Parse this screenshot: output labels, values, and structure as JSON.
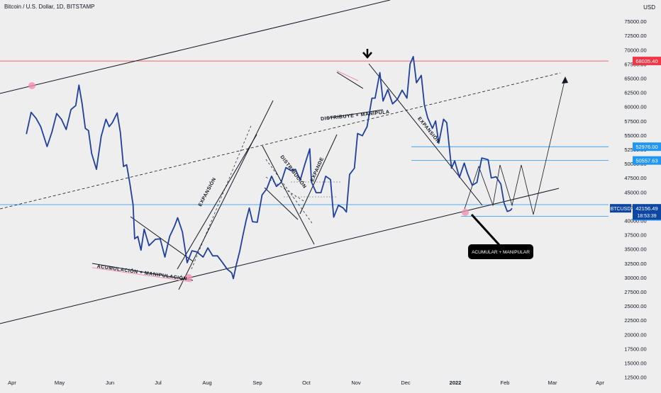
{
  "header": {
    "symbol_title": "Bitcoin / U.S. Dollar, 1D, BITSTAMP",
    "currency": "USD"
  },
  "price_tags": {
    "resistance_top": "68035.40",
    "level_upper": "52976.00",
    "level_mid": "50557.63",
    "ticker": "BTCUSD",
    "last_price": "42156.49",
    "countdown": "18:53:39",
    "level_support": "40746.76"
  },
  "annotations": {
    "accumulation": "ACUMULACIÓN + MANIPULACIÓN",
    "expansion_1": "EXPANSIÓN",
    "distribution_1": "DISTRIBUCIÓN",
    "expand": "EXPANDE",
    "distribution_2": "DISTRIBUYE + MANIPULA",
    "expansion_2": "EXPANSIÓN",
    "callout": "ACUMULAR + MANIPULAR"
  },
  "colors": {
    "background": "#eeeeee",
    "price_line": "#1e3f9e",
    "red_level": "#f23645",
    "blue_level": "#2196f3",
    "callout_bg": "#000000"
  },
  "chart_data": {
    "type": "line",
    "title": "Bitcoin / U.S. Dollar, 1D, BITSTAMP",
    "xlabel": "",
    "ylabel": "USD",
    "ylim": [
      12500,
      77500
    ],
    "x_ticks": [
      "Apr",
      "May",
      "Jun",
      "Jul",
      "Aug",
      "Sep",
      "Oct",
      "Nov",
      "Dec",
      "2022",
      "Feb",
      "Mar",
      "Apr"
    ],
    "y_ticks": [
      12500,
      15000,
      17500,
      20000,
      22500,
      25000,
      27500,
      30000,
      32500,
      35000,
      37500,
      40000,
      42500,
      45000,
      47500,
      50000,
      52500,
      55000,
      57500,
      60000,
      62500,
      65000,
      67500,
      70000,
      72500,
      75000,
      77500
    ],
    "grid": false,
    "series": [
      {
        "points": [
          [
            "2021-03-12",
            55200
          ],
          [
            "2021-03-15",
            59000
          ],
          [
            "2021-03-18",
            58000
          ],
          [
            "2021-03-21",
            56500
          ],
          [
            "2021-03-25",
            53000
          ],
          [
            "2021-03-28",
            55500
          ],
          [
            "2021-03-31",
            58800
          ],
          [
            "2021-04-03",
            57800
          ],
          [
            "2021-04-06",
            56000
          ],
          [
            "2021-04-09",
            59500
          ],
          [
            "2021-04-12",
            60200
          ],
          [
            "2021-04-14",
            63800
          ],
          [
            "2021-04-16",
            60500
          ],
          [
            "2021-04-18",
            56200
          ],
          [
            "2021-04-20",
            55800
          ],
          [
            "2021-04-22",
            51800
          ],
          [
            "2021-04-25",
            49000
          ],
          [
            "2021-04-28",
            54800
          ],
          [
            "2021-05-01",
            57800
          ],
          [
            "2021-05-03",
            56500
          ],
          [
            "2021-05-05",
            57200
          ],
          [
            "2021-05-08",
            58900
          ],
          [
            "2021-05-10",
            55500
          ],
          [
            "2021-05-12",
            49500
          ],
          [
            "2021-05-14",
            49800
          ],
          [
            "2021-05-16",
            46500
          ],
          [
            "2021-05-18",
            42800
          ],
          [
            "2021-05-19",
            36800
          ],
          [
            "2021-05-21",
            37200
          ],
          [
            "2021-05-23",
            34800
          ],
          [
            "2021-05-25",
            38500
          ],
          [
            "2021-05-28",
            35600
          ],
          [
            "2021-06-01",
            36700
          ],
          [
            "2021-06-04",
            36800
          ],
          [
            "2021-06-07",
            33600
          ],
          [
            "2021-06-10",
            37200
          ],
          [
            "2021-06-13",
            39000
          ],
          [
            "2021-06-15",
            40500
          ],
          [
            "2021-06-18",
            38000
          ],
          [
            "2021-06-21",
            32600
          ],
          [
            "2021-06-24",
            34700
          ],
          [
            "2021-06-27",
            34500
          ],
          [
            "2021-07-01",
            33600
          ],
          [
            "2021-07-04",
            35200
          ],
          [
            "2021-07-07",
            33800
          ],
          [
            "2021-07-10",
            33800
          ],
          [
            "2021-07-13",
            32700
          ],
          [
            "2021-07-16",
            31500
          ],
          [
            "2021-07-19",
            30800
          ],
          [
            "2021-07-20",
            29800
          ],
          [
            "2021-07-22",
            32400
          ],
          [
            "2021-07-24",
            34600
          ],
          [
            "2021-07-26",
            37400
          ],
          [
            "2021-07-28",
            40000
          ],
          [
            "2021-07-30",
            42200
          ],
          [
            "2021-08-01",
            39800
          ],
          [
            "2021-08-04",
            39700
          ],
          [
            "2021-08-07",
            44500
          ],
          [
            "2021-08-10",
            45600
          ],
          [
            "2021-08-13",
            47800
          ],
          [
            "2021-08-16",
            46000
          ],
          [
            "2021-08-19",
            46700
          ],
          [
            "2021-08-22",
            49300
          ],
          [
            "2021-08-25",
            48800
          ],
          [
            "2021-08-28",
            49000
          ],
          [
            "2021-08-31",
            47100
          ],
          [
            "2021-09-03",
            50000
          ],
          [
            "2021-09-06",
            52600
          ],
          [
            "2021-09-07",
            46800
          ],
          [
            "2021-09-10",
            44900
          ],
          [
            "2021-09-13",
            44900
          ],
          [
            "2021-09-16",
            47800
          ],
          [
            "2021-09-19",
            47200
          ],
          [
            "2021-09-21",
            40600
          ],
          [
            "2021-09-24",
            42700
          ],
          [
            "2021-09-27",
            42200
          ],
          [
            "2021-09-29",
            41500
          ],
          [
            "2021-10-01",
            48100
          ],
          [
            "2021-10-04",
            49200
          ],
          [
            "2021-10-06",
            55300
          ],
          [
            "2021-10-09",
            54900
          ],
          [
            "2021-10-12",
            56500
          ],
          [
            "2021-10-15",
            61500
          ],
          [
            "2021-10-17",
            61500
          ],
          [
            "2021-10-20",
            66000
          ],
          [
            "2021-10-22",
            61000
          ],
          [
            "2021-10-25",
            63000
          ],
          [
            "2021-10-28",
            60500
          ],
          [
            "2021-10-31",
            61300
          ],
          [
            "2021-11-03",
            62900
          ],
          [
            "2021-11-06",
            61500
          ],
          [
            "2021-11-08",
            67500
          ],
          [
            "2021-11-10",
            68800
          ],
          [
            "2021-11-12",
            64200
          ],
          [
            "2021-11-15",
            65500
          ],
          [
            "2021-11-17",
            60300
          ],
          [
            "2021-11-19",
            58100
          ],
          [
            "2021-11-22",
            56200
          ],
          [
            "2021-11-24",
            57500
          ],
          [
            "2021-11-26",
            53600
          ],
          [
            "2021-11-29",
            57800
          ],
          [
            "2021-12-01",
            57200
          ],
          [
            "2021-12-04",
            49200
          ],
          [
            "2021-12-06",
            50500
          ],
          [
            "2021-12-09",
            47600
          ],
          [
            "2021-12-12",
            50100
          ],
          [
            "2021-12-14",
            48300
          ],
          [
            "2021-12-17",
            46200
          ],
          [
            "2021-12-20",
            46700
          ],
          [
            "2021-12-23",
            51000
          ],
          [
            "2021-12-27",
            50700
          ],
          [
            "2021-12-29",
            47500
          ],
          [
            "2022-01-01",
            47700
          ],
          [
            "2022-01-04",
            46400
          ],
          [
            "2022-01-06",
            43100
          ],
          [
            "2022-01-08",
            41600
          ],
          [
            "2022-01-10",
            41800
          ],
          [
            "2022-01-11",
            42156.49
          ]
        ]
      }
    ]
  }
}
